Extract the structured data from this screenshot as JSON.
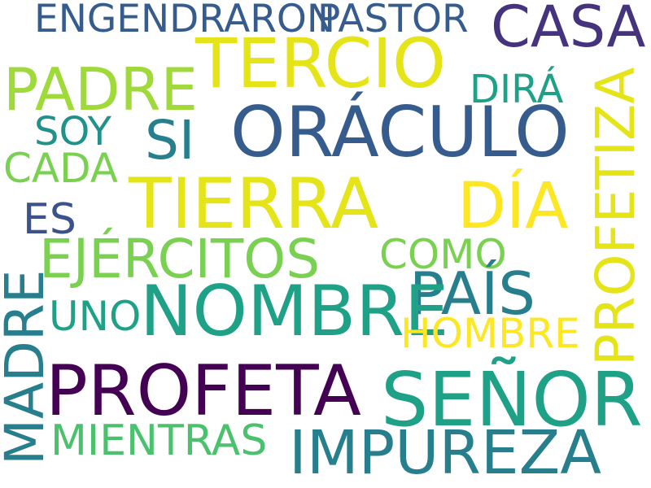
{
  "words": {
    "engendraron": "ENGENDRARON",
    "pastor": "PASTOR",
    "casa": "CASA",
    "tercio": "TERCIO",
    "padre": "PADRE",
    "dira": "DIRÁ",
    "profetiza": "PROFETIZA",
    "soy": "SOY",
    "si": "SI",
    "oraculo": "ORÁCULO",
    "cada": "CADA",
    "tierra": "TIERRA",
    "dia": "DÍA",
    "es": "ES",
    "ejercitos": "EJÉRCITOS",
    "como": "COMO",
    "pais": "PAÍS",
    "madre": "MADRE",
    "uno": "UNO",
    "nombre": "NOMBRE",
    "hombre": "HOMBRE",
    "profeta": "PROFETA",
    "senor": "SEÑOR",
    "mientras": "MIENTRAS",
    "impureza": "IMPUREZA"
  }
}
